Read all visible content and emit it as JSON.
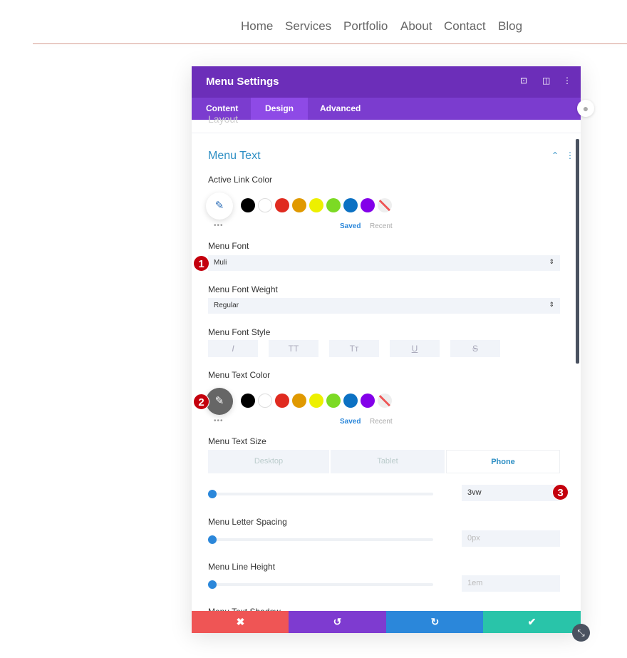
{
  "nav": {
    "items": [
      "Home",
      "Services",
      "Portfolio",
      "About",
      "Contact",
      "Blog"
    ]
  },
  "modal": {
    "title": "Menu Settings",
    "tabs": [
      "Content",
      "Design",
      "Advanced"
    ],
    "active_tab": "Design",
    "prev_section": "Layout",
    "section_title": "Menu Text",
    "active_link_color": {
      "label": "Active Link Color",
      "saved": "Saved",
      "recent": "Recent"
    },
    "menu_font": {
      "label": "Menu Font",
      "value": "Muli"
    },
    "menu_font_weight": {
      "label": "Menu Font Weight",
      "value": "Regular"
    },
    "menu_font_style": {
      "label": "Menu Font Style",
      "buttons": [
        "I",
        "TT",
        "Tт",
        "U",
        "S"
      ]
    },
    "menu_text_color": {
      "label": "Menu Text Color",
      "saved": "Saved",
      "recent": "Recent"
    },
    "menu_text_size": {
      "label": "Menu Text Size",
      "devices": [
        "Desktop",
        "Tablet",
        "Phone"
      ],
      "active_device": "Phone",
      "value": "3vw"
    },
    "letter_spacing": {
      "label": "Menu Letter Spacing",
      "value": "0px"
    },
    "line_height": {
      "label": "Menu Line Height",
      "value": "1em"
    },
    "text_shadow": {
      "label": "Menu Text Shadow"
    }
  },
  "swatches": [
    "#000000",
    "#ffffff",
    "#e02b20",
    "#e09900",
    "#edf000",
    "#7cda24",
    "#0c71c3",
    "#8300e9"
  ],
  "badges": [
    "1",
    "2",
    "3"
  ],
  "colors": {
    "header": "#6c2eb9",
    "tabs": "#7b3ccf",
    "accent": "#2b87da",
    "cancel": "#ef5555",
    "undo": "#7e3bd0",
    "redo": "#2b87da",
    "save": "#29c4a9"
  }
}
